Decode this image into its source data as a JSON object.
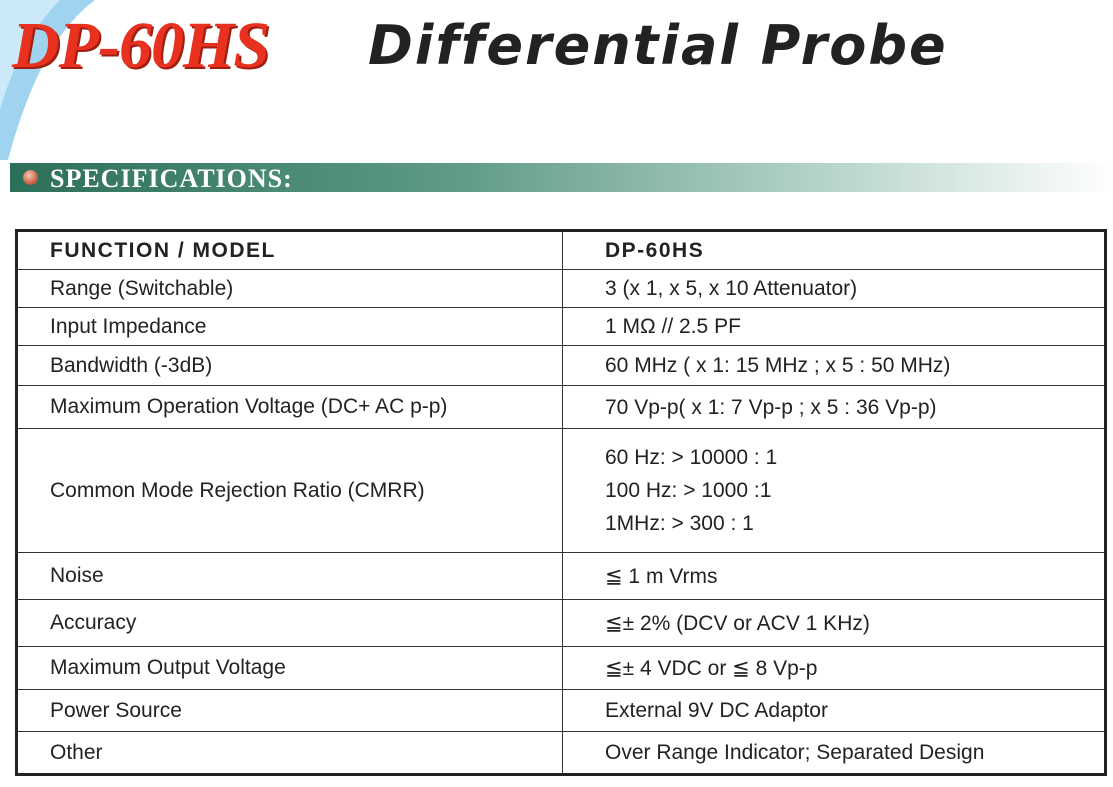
{
  "header": {
    "model": "DP-60HS",
    "title": "Differential Probe"
  },
  "section": {
    "title": "SPECIFICATIONS:"
  },
  "table": {
    "columns": [
      "FUNCTION  /  MODEL",
      "DP-60HS"
    ],
    "rows": [
      {
        "function": "Range (Switchable)",
        "spec": [
          "3  (x 1, x 5, x 10 Attenuator)"
        ]
      },
      {
        "function": "Input Impedance",
        "spec": [
          "1 MΩ   //  2.5 PF"
        ]
      },
      {
        "function": "Bandwidth (-3dB)",
        "spec": [
          "60 MHz ( x 1: 15 MHz ;   x 5 : 50 MHz)"
        ]
      },
      {
        "function": "Maximum Operation Voltage (DC+ AC p-p)",
        "spec": [
          "70 Vp-p( x 1: 7 Vp-p ;   x 5 : 36 Vp-p)"
        ]
      },
      {
        "function": "Common Mode Rejection Ratio (CMRR)",
        "spec": [
          "60 Hz: > 10000 : 1",
          "100 Hz: > 1000 :1",
          "1MHz: > 300 : 1"
        ]
      },
      {
        "function": "Noise",
        "spec": [
          "≦  1 m Vrms"
        ]
      },
      {
        "function": "Accuracy",
        "spec": [
          "≦±  2% (DCV or ACV 1 KHz)"
        ]
      },
      {
        "function": "Maximum Output Voltage",
        "spec": [
          "≦±  4 VDC or ≦  8 Vp-p"
        ]
      },
      {
        "function": "Power Source",
        "spec": [
          "External 9V DC Adaptor"
        ]
      },
      {
        "function": "Other",
        "spec": [
          "Over Range Indicator; Separated Design"
        ]
      }
    ]
  }
}
